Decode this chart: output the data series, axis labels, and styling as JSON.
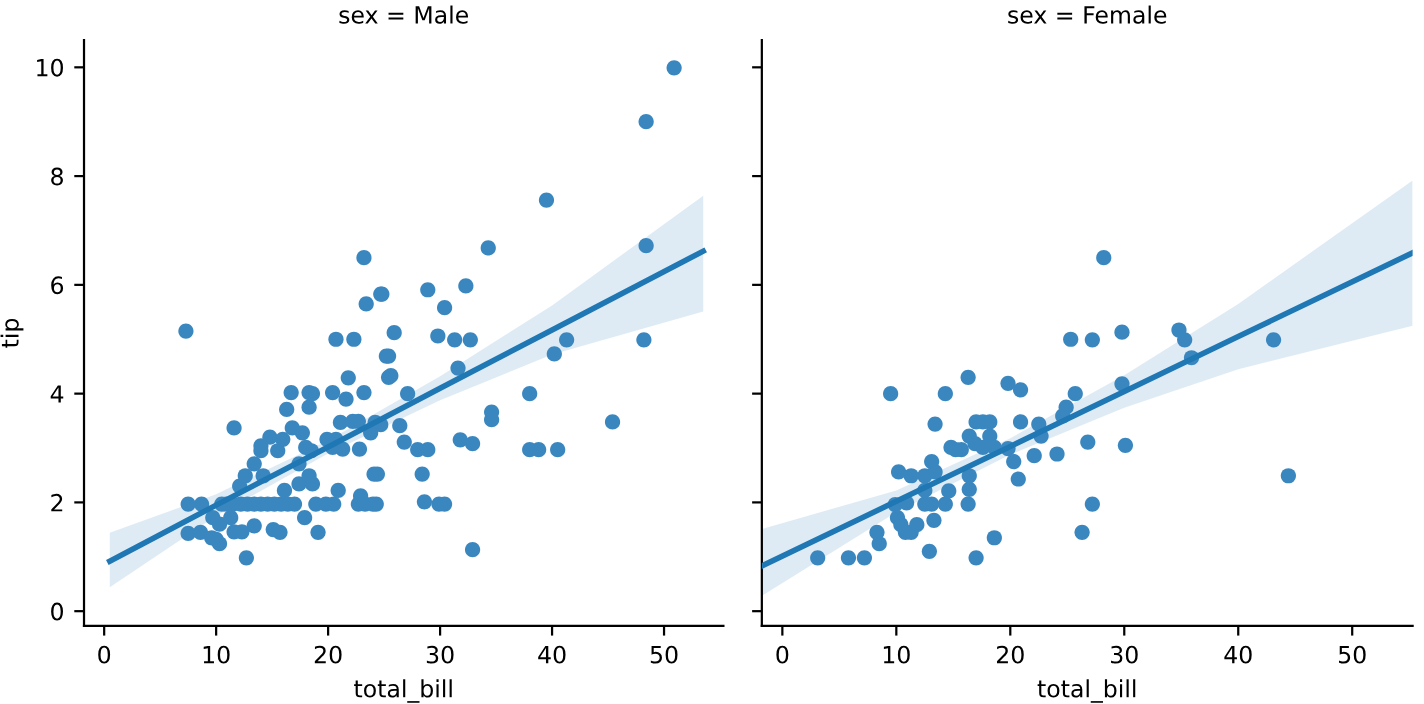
{
  "chart_data": [
    {
      "type": "scatter",
      "title": "sex = Male",
      "xlabel": "total_bill",
      "ylabel": "tip",
      "xlim": [
        -1.8,
        55.3
      ],
      "xticks": [
        0,
        10,
        20,
        30,
        40,
        50
      ],
      "ylim": [
        -0.27,
        10.5
      ],
      "yticks": [
        0,
        2,
        4,
        6,
        8,
        10
      ],
      "grid": false,
      "series": [
        {
          "marker": "circle",
          "color": "#3a87c0",
          "x": [
            7.3,
            7.5,
            8.7,
            7.5,
            8.6,
            9.7,
            10,
            10.3,
            9.6,
            10.5,
            10.3,
            11.6,
            11.6,
            12.3,
            11.3,
            12.1,
            12.6,
            13.4,
            12.7,
            13.4,
            10.9,
            11.5,
            12.2,
            12.8,
            13.4,
            14,
            14.6,
            15.2,
            15.8,
            16.4,
            17,
            18.9,
            19.8,
            20.5,
            22.7,
            23.3,
            24,
            24.3,
            14,
            14,
            14.8,
            15.95,
            15.5,
            14.2,
            15.1,
            15.7,
            16.3,
            16.7,
            16.8,
            17.4,
            17.7,
            18.3,
            18.3,
            18.6,
            18,
            18.5,
            16.1,
            17.4,
            18.6,
            18.3,
            17.9,
            19.1,
            20.4,
            20.7,
            22.3,
            21.6,
            21.8,
            21.1,
            22.2,
            22.7,
            19.9,
            20.4,
            20.7,
            21.3,
            22.8,
            20.9,
            24.1,
            22.9,
            23.2,
            23.2,
            23.4,
            24.8,
            24.2,
            23.8,
            24.7,
            25.4,
            25.4,
            25.9,
            26.4,
            50.9,
            48.4,
            39.5,
            48.4,
            48.2,
            34.3,
            24.7,
            28.9,
            32.3,
            30.4,
            29.8,
            31.3,
            32.7,
            25.2,
            25.6,
            31.6,
            40.2,
            41.3,
            27.1,
            38,
            34.6,
            34.6,
            26.8,
            31.8,
            32.9,
            28,
            28.9,
            38,
            38.8,
            40.5,
            45.4,
            28.4,
            24.4,
            28.6,
            29.9,
            30.4,
            32.9
          ],
          "values": [
            5.15,
            1.97,
            1.97,
            1.43,
            1.45,
            1.72,
            1.32,
            1.24,
            1.35,
            1.97,
            1.6,
            3.37,
            1.46,
            1.46,
            1.72,
            2.3,
            2.49,
            2.71,
            0.98,
            1.57,
            1.97,
            1.97,
            1.97,
            1.97,
            1.97,
            1.97,
            1.97,
            1.97,
            1.97,
            1.97,
            1.97,
            1.97,
            1.97,
            1.97,
            1.97,
            1.97,
            1.97,
            1.97,
            3.04,
            2.95,
            3.2,
            3.16,
            2.95,
            2.49,
            1.5,
            1.45,
            3.71,
            4.02,
            3.37,
            2.71,
            3.28,
            3.75,
            4.02,
            4.0,
            3.01,
            2.95,
            2.22,
            2.34,
            2.34,
            2.49,
            1.72,
            1.45,
            4.02,
            5.0,
            5.0,
            3.9,
            4.29,
            3.47,
            3.49,
            3.49,
            3.16,
            3.01,
            3.16,
            2.98,
            2.98,
            2.22,
            2.52,
            2.12,
            4.02,
            6.5,
            5.65,
            5.83,
            3.47,
            3.28,
            3.43,
            4.69,
            4.3,
            5.12,
            3.41,
            9.99,
            9.0,
            7.56,
            6.72,
            4.99,
            6.68,
            5.83,
            5.91,
            5.98,
            5.58,
            5.06,
            4.99,
            4.99,
            4.69,
            4.33,
            4.47,
            4.73,
            4.99,
            4.0,
            4.0,
            3.66,
            3.52,
            3.11,
            3.15,
            3.08,
            2.97,
            2.97,
            2.97,
            2.97,
            2.97,
            3.48,
            2.52,
            2.52,
            2.01,
            1.97,
            1.97,
            1.13
          ]
        },
        {
          "type": "line",
          "color": "#1f77b4",
          "x": [
            0.5,
            10,
            20,
            30,
            40,
            53.5
          ],
          "values": [
            0.92,
            1.95,
            3.02,
            4.1,
            5.17,
            6.62
          ],
          "lower": [
            0.44,
            1.75,
            2.9,
            3.88,
            4.72,
            5.51
          ],
          "upper": [
            1.44,
            2.15,
            3.14,
            4.32,
            5.62,
            7.64
          ]
        }
      ]
    },
    {
      "type": "scatter",
      "title": "sex = Female",
      "xlabel": "total_bill",
      "xlim": [
        -1.8,
        55.3
      ],
      "xticks": [
        0,
        10,
        20,
        30,
        40,
        50
      ],
      "ylim": [
        -0.27,
        10.5
      ],
      "yticks": [
        0,
        2,
        4,
        6,
        8,
        10
      ],
      "tick_labels": "x",
      "grid": false,
      "series": [
        {
          "marker": "circle",
          "color": "#3a87c0",
          "x": [
            3.1,
            5.8,
            7.2,
            8.5,
            8.3,
            9.5,
            10.2,
            11.3,
            9.9,
            10.9,
            10.1,
            10.4,
            10.8,
            11.3,
            11.8,
            12.5,
            12.5,
            12.5,
            13.1,
            13.1,
            13.4,
            13.4,
            13.3,
            12.9,
            14.3,
            14.3,
            14.6,
            14.8,
            15.2,
            15.7,
            16.3,
            16.4,
            16.4,
            16.4,
            16.3,
            17,
            17.6,
            18.2,
            18.2,
            16.9,
            17.6,
            18.6,
            17,
            18.6,
            19.8,
            20.9,
            20.9,
            19.8,
            20.3,
            20.7,
            22.1,
            22.5,
            22.7,
            24.1,
            24.6,
            24.9,
            25.3,
            25.7,
            26.3,
            28.2,
            27.2,
            29.8,
            34.8,
            35.3,
            35.9,
            43.1,
            29.8,
            26.8,
            30.1,
            44.4,
            27.2
          ],
          "values": [
            0.98,
            0.98,
            0.98,
            1.24,
            1.45,
            4.0,
            2.56,
            2.49,
            1.96,
            1.99,
            1.72,
            1.59,
            1.45,
            1.45,
            1.59,
            2.49,
            2.22,
            1.97,
            1.97,
            2.75,
            3.44,
            2.56,
            1.67,
            1.1,
            4.0,
            1.97,
            2.21,
            3.01,
            2.97,
            2.97,
            4.3,
            3.22,
            2.49,
            2.24,
            1.97,
            3.48,
            3.48,
            3.48,
            3.22,
            3.08,
            3.01,
            3.01,
            0.98,
            1.35,
            4.19,
            4.07,
            3.48,
            2.99,
            2.75,
            2.43,
            2.86,
            3.44,
            3.22,
            2.89,
            3.59,
            3.75,
            5.0,
            4.0,
            1.45,
            6.5,
            4.99,
            5.13,
            5.17,
            4.99,
            4.66,
            4.99,
            4.18,
            3.11,
            3.05,
            2.49,
            1.97
          ]
        },
        {
          "type": "line",
          "color": "#1f77b4",
          "x": [
            -1.8,
            10,
            20,
            30,
            40,
            55.3
          ],
          "values": [
            0.83,
            2.02,
            3.03,
            4.04,
            5.05,
            6.59
          ],
          "lower": [
            0.28,
            1.82,
            2.88,
            3.74,
            4.45,
            5.25
          ],
          "upper": [
            1.51,
            2.22,
            3.18,
            4.34,
            5.65,
            7.92
          ]
        }
      ]
    }
  ]
}
